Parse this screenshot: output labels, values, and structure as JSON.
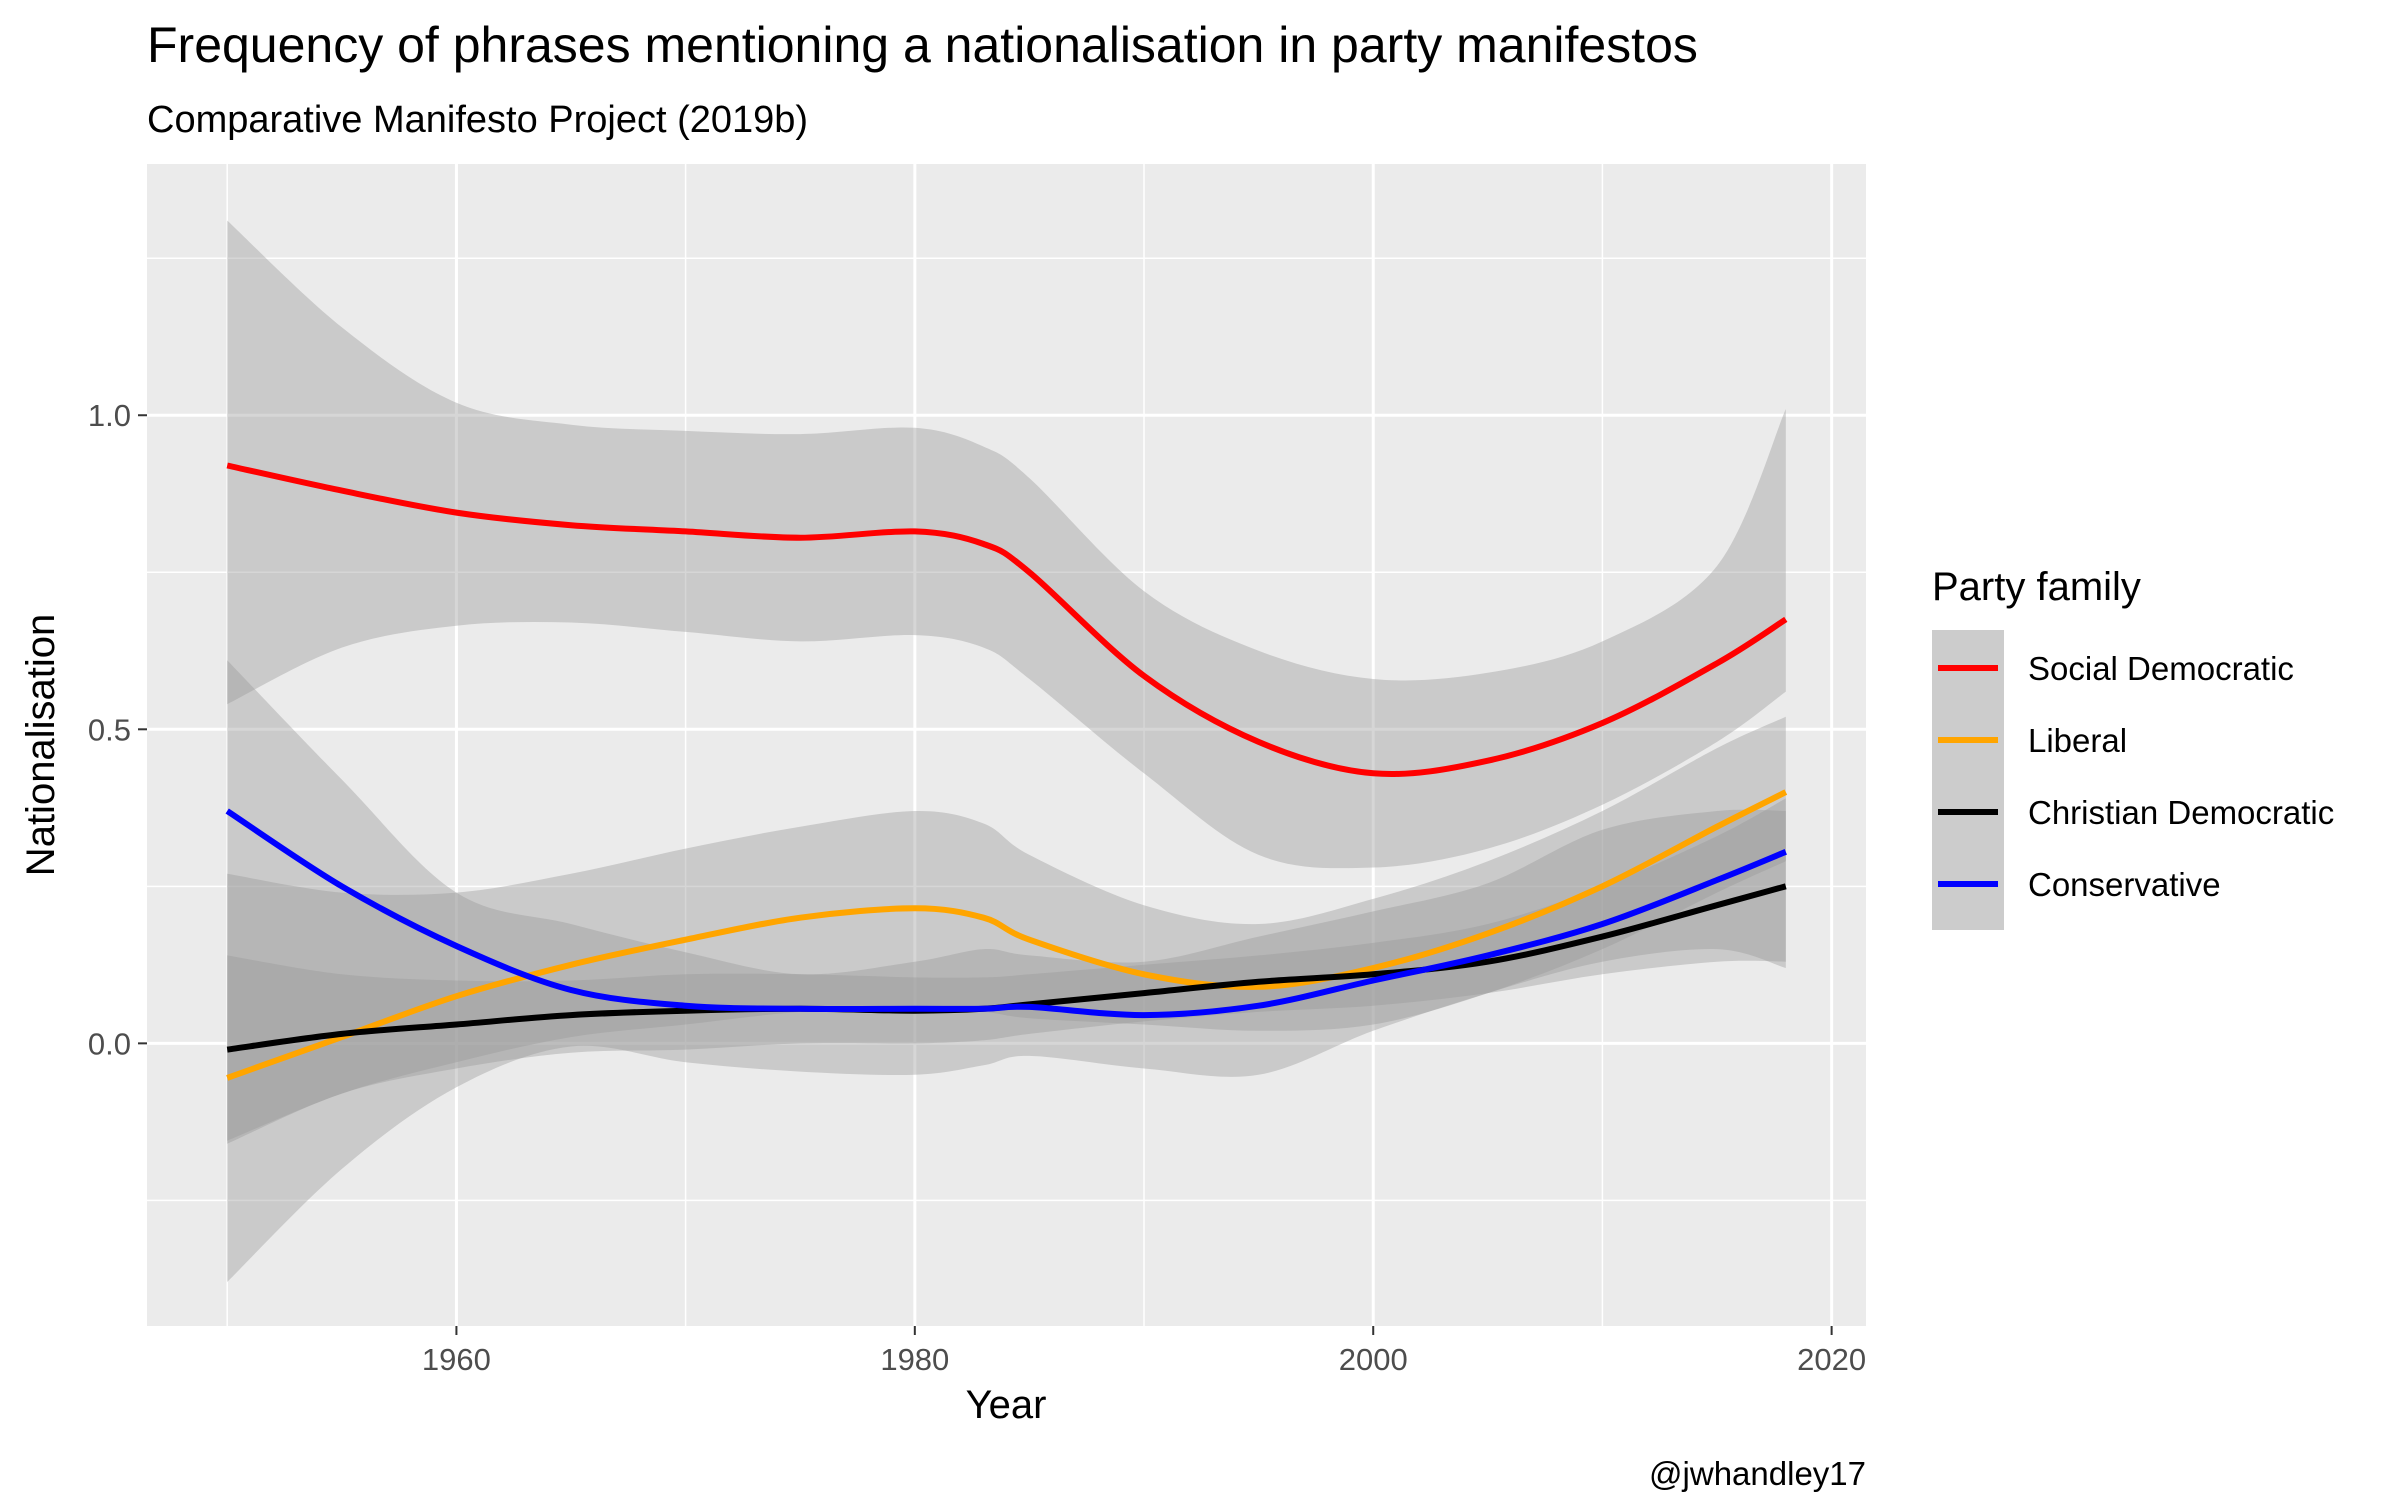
{
  "chart_data": {
    "type": "line",
    "title": "Frequency of phrases mentioning a nationalisation in party manifestos",
    "subtitle": "Comparative Manifesto Project (2019b)",
    "xlabel": "Year",
    "ylabel": "Nationalisation",
    "caption": "@jwhandley17",
    "xlim": [
      1946.5,
      2021.5
    ],
    "ylim": [
      -0.45,
      1.4
    ],
    "x_ticks": [
      1960,
      1980,
      2000,
      2020
    ],
    "y_ticks": [
      0.0,
      0.5,
      1.0
    ],
    "x_tick_labels": [
      "1960",
      "1980",
      "2000",
      "2020"
    ],
    "y_tick_labels": [
      "0.0",
      "0.5",
      "1.0"
    ],
    "grid": true,
    "legend": {
      "title": "Party family",
      "position": "right"
    },
    "x": [
      1950,
      1955,
      1960,
      1965,
      1970,
      1975,
      1980,
      1983,
      1985,
      1990,
      1995,
      2000,
      2005,
      2010,
      2015,
      2018
    ],
    "series": [
      {
        "name": "Social Democratic",
        "color": "#ff0000",
        "values": [
          0.92,
          0.88,
          0.845,
          0.825,
          0.815,
          0.805,
          0.815,
          0.795,
          0.75,
          0.585,
          0.48,
          0.43,
          0.45,
          0.51,
          0.605,
          0.675
        ],
        "ci_lower": [
          0.54,
          0.63,
          0.665,
          0.67,
          0.655,
          0.64,
          0.65,
          0.63,
          0.58,
          0.43,
          0.3,
          0.28,
          0.31,
          0.38,
          0.48,
          0.56
        ],
        "ci_upper": [
          1.31,
          1.14,
          1.02,
          0.985,
          0.975,
          0.97,
          0.98,
          0.95,
          0.9,
          0.72,
          0.625,
          0.58,
          0.59,
          0.64,
          0.76,
          1.01
        ]
      },
      {
        "name": "Liberal",
        "color": "#ffa500",
        "values": [
          -0.055,
          0.01,
          0.075,
          0.125,
          0.165,
          0.2,
          0.215,
          0.2,
          0.165,
          0.11,
          0.09,
          0.12,
          0.175,
          0.25,
          0.345,
          0.4
        ],
        "ci_lower": [
          -0.155,
          -0.08,
          -0.03,
          0.01,
          0.03,
          0.05,
          0.055,
          0.05,
          0.04,
          0.03,
          0.02,
          0.03,
          0.08,
          0.15,
          0.24,
          0.29
        ],
        "ci_upper": [
          0.27,
          0.24,
          0.24,
          0.27,
          0.31,
          0.345,
          0.37,
          0.35,
          0.3,
          0.22,
          0.19,
          0.23,
          0.29,
          0.37,
          0.47,
          0.52
        ]
      },
      {
        "name": "Christian Democratic",
        "color": "#000000",
        "values": [
          -0.01,
          0.015,
          0.03,
          0.045,
          0.052,
          0.055,
          0.052,
          0.055,
          0.062,
          0.08,
          0.098,
          0.11,
          0.13,
          0.17,
          0.22,
          0.25
        ],
        "ci_lower": [
          -0.16,
          -0.08,
          -0.04,
          -0.015,
          -0.01,
          0.0,
          0.0,
          0.005,
          0.015,
          0.035,
          0.05,
          0.06,
          0.08,
          0.11,
          0.13,
          0.13
        ],
        "ci_upper": [
          0.14,
          0.11,
          0.1,
          0.1,
          0.11,
          0.11,
          0.105,
          0.105,
          0.11,
          0.125,
          0.14,
          0.16,
          0.19,
          0.25,
          0.33,
          0.39
        ]
      },
      {
        "name": "Conservative",
        "color": "#0000ff",
        "values": [
          0.37,
          0.25,
          0.155,
          0.085,
          0.06,
          0.055,
          0.055,
          0.055,
          0.058,
          0.045,
          0.06,
          0.1,
          0.14,
          0.19,
          0.26,
          0.305
        ],
        "ci_lower": [
          -0.38,
          -0.2,
          -0.07,
          -0.005,
          -0.03,
          -0.045,
          -0.05,
          -0.035,
          -0.02,
          -0.04,
          -0.05,
          0.02,
          0.08,
          0.13,
          0.15,
          0.12
        ],
        "ci_upper": [
          0.61,
          0.42,
          0.24,
          0.19,
          0.145,
          0.11,
          0.13,
          0.15,
          0.14,
          0.13,
          0.17,
          0.21,
          0.255,
          0.34,
          0.37,
          0.37
        ]
      }
    ]
  }
}
